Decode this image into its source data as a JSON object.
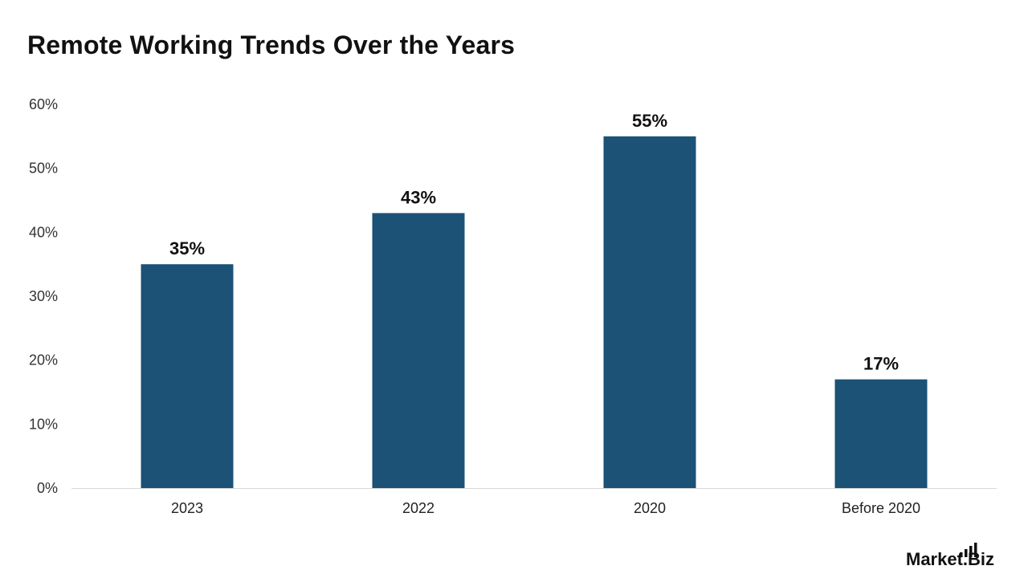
{
  "chart_data": {
    "type": "bar",
    "title": "Remote Working Trends Over the Years",
    "categories": [
      "2023",
      "2022",
      "2020",
      "Before 2020"
    ],
    "values": [
      35,
      43,
      55,
      17
    ],
    "value_labels": [
      "35%",
      "43%",
      "55%",
      "17%"
    ],
    "ylim": [
      0,
      60
    ],
    "yticks": [
      0,
      10,
      20,
      30,
      40,
      50,
      60
    ],
    "ytick_labels": [
      "0%",
      "10%",
      "20%",
      "30%",
      "40%",
      "50%",
      "60%"
    ],
    "grid": false,
    "bar_color": "#1b5276",
    "xlabel": "",
    "ylabel": ""
  },
  "brand": {
    "logo_text": "Market.Biz",
    "logo_icon": "bar-chart-logo-icon"
  }
}
